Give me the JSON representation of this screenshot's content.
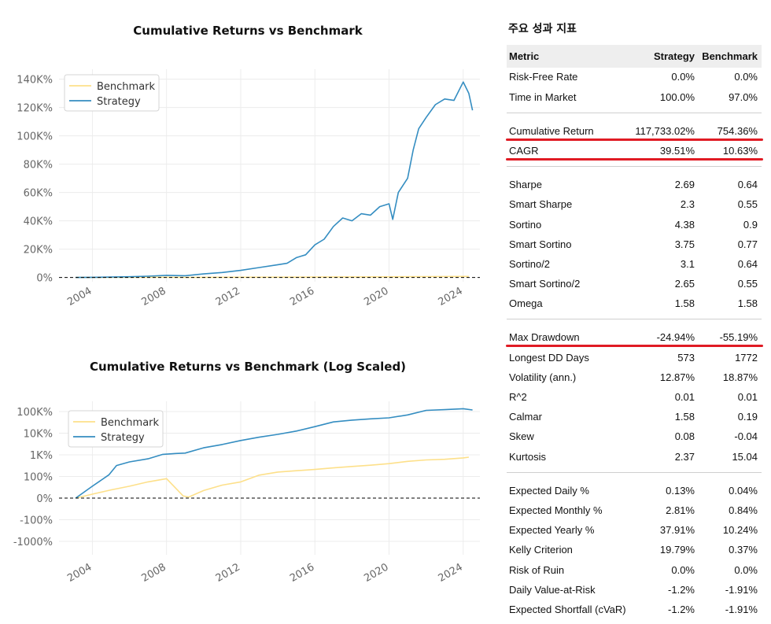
{
  "chart_data": [
    {
      "type": "line",
      "title": "Cumulative Returns vs Benchmark",
      "y_scale": "linear",
      "xlim": [
        2002.2,
        2024.9
      ],
      "ylim": [
        -3000,
        147000
      ],
      "y_ticks": [
        0,
        20000,
        40000,
        60000,
        80000,
        100000,
        120000,
        140000
      ],
      "y_tick_labels": [
        "0%",
        "20K%",
        "40K%",
        "60K%",
        "80K%",
        "100K%",
        "120K%",
        "140K%"
      ],
      "x_ticks": [
        2004,
        2008,
        2012,
        2016,
        2020,
        2024
      ],
      "x_tick_labels": [
        "2004",
        "2008",
        "2012",
        "2016",
        "2020",
        "2024"
      ],
      "legend": "top-left",
      "grid": true,
      "zero_line": "dashed",
      "series": [
        {
          "name": "Benchmark",
          "color": "#fde08a",
          "x": [
            2003.1,
            2005,
            2007.8,
            2009.1,
            2012,
            2016,
            2020,
            2022,
            2024.3
          ],
          "y": [
            0,
            80,
            180,
            30,
            150,
            280,
            450,
            600,
            750
          ]
        },
        {
          "name": "Strategy",
          "color": "#348dc1",
          "x": [
            2003.1,
            2004,
            2005,
            2006,
            2007,
            2008,
            2009,
            2010,
            2011,
            2012,
            2013,
            2014,
            2014.5,
            2015,
            2015.5,
            2016,
            2016.5,
            2017,
            2017.5,
            2018,
            2018.5,
            2019,
            2019.5,
            2020,
            2020.2,
            2020.5,
            2021,
            2021.3,
            2021.6,
            2022,
            2022.5,
            2023,
            2023.5,
            2024,
            2024.3,
            2024.5
          ],
          "y": [
            0,
            100,
            300,
            500,
            900,
            1500,
            1200,
            2500,
            3500,
            5000,
            7000,
            9000,
            10000,
            14000,
            16000,
            23000,
            27000,
            36000,
            42000,
            40000,
            45000,
            44000,
            50000,
            52000,
            41000,
            60000,
            70000,
            90000,
            105000,
            113000,
            122000,
            126000,
            125000,
            138000,
            130000,
            118000
          ]
        }
      ]
    },
    {
      "type": "line",
      "title": "Cumulative Returns vs Benchmark (Log Scaled)",
      "y_scale": "symlog",
      "xlim": [
        2002.2,
        2024.9
      ],
      "y_ticks": [
        100000,
        10000,
        1000,
        100,
        0,
        -100,
        -1000
      ],
      "y_tick_labels": [
        "100K%",
        "10K%",
        "1K%",
        "100%",
        "0%",
        "-100%",
        "-1000%"
      ],
      "x_ticks": [
        2004,
        2008,
        2012,
        2016,
        2020,
        2024
      ],
      "x_tick_labels": [
        "2004",
        "2008",
        "2012",
        "2016",
        "2020",
        "2024"
      ],
      "legend": "top-left",
      "grid": true,
      "zero_line": "dashed",
      "series": [
        {
          "name": "Benchmark",
          "color": "#fde08a",
          "x": [
            2003.1,
            2004,
            2005,
            2006,
            2007,
            2008,
            2008.9,
            2009.2,
            2010,
            2011,
            2012,
            2013,
            2014,
            2015,
            2016,
            2017,
            2018,
            2019,
            2020,
            2021,
            2022,
            2023,
            2024,
            2024.3
          ],
          "y": [
            0,
            18,
            38,
            55,
            75,
            90,
            10,
            5,
            35,
            60,
            75,
            115,
            160,
            185,
            210,
            250,
            290,
            330,
            390,
            500,
            580,
            620,
            720,
            780
          ]
        },
        {
          "name": "Strategy",
          "color": "#348dc1",
          "x": [
            2003.1,
            2004,
            2004.9,
            2005.3,
            2006,
            2007,
            2007.8,
            2008.5,
            2009,
            2010,
            2011,
            2012,
            2013,
            2014,
            2015,
            2016,
            2017,
            2018,
            2019,
            2020,
            2021,
            2022,
            2023,
            2024,
            2024.5
          ],
          "y": [
            0,
            55,
            120,
            320,
            470,
            650,
            1050,
            1150,
            1200,
            2100,
            3000,
            4600,
            6500,
            8800,
            12500,
            20000,
            33000,
            40000,
            46000,
            51000,
            70000,
            113000,
            122000,
            135000,
            118000
          ]
        }
      ]
    }
  ],
  "metrics": {
    "title": "주요 성과 지표",
    "header": {
      "metric": "Metric",
      "strategy": "Strategy",
      "benchmark": "Benchmark"
    },
    "groups": [
      [
        {
          "metric": "Risk-Free Rate",
          "strategy": "0.0%",
          "benchmark": "0.0%"
        },
        {
          "metric": "Time in Market",
          "strategy": "100.0%",
          "benchmark": "97.0%"
        }
      ],
      [
        {
          "metric": "Cumulative Return",
          "strategy": "117,733.02%",
          "benchmark": "754.36%"
        },
        {
          "metric": "CAGR",
          "strategy": "39.51%",
          "benchmark": "10.63%"
        }
      ],
      [
        {
          "metric": "Sharpe",
          "strategy": "2.69",
          "benchmark": "0.64"
        },
        {
          "metric": "Smart Sharpe",
          "strategy": "2.3",
          "benchmark": "0.55"
        },
        {
          "metric": "Sortino",
          "strategy": "4.38",
          "benchmark": "0.9"
        },
        {
          "metric": "Smart Sortino",
          "strategy": "3.75",
          "benchmark": "0.77"
        },
        {
          "metric": "Sortino/2",
          "strategy": "3.1",
          "benchmark": "0.64"
        },
        {
          "metric": "Smart Sortino/2",
          "strategy": "2.65",
          "benchmark": "0.55"
        },
        {
          "metric": "Omega",
          "strategy": "1.58",
          "benchmark": "1.58"
        }
      ],
      [
        {
          "metric": "Max Drawdown",
          "strategy": "-24.94%",
          "benchmark": "-55.19%"
        },
        {
          "metric": "Longest DD Days",
          "strategy": "573",
          "benchmark": "1772"
        },
        {
          "metric": "Volatility (ann.)",
          "strategy": "12.87%",
          "benchmark": "18.87%"
        },
        {
          "metric": "R^2",
          "strategy": "0.01",
          "benchmark": "0.01"
        },
        {
          "metric": "Calmar",
          "strategy": "1.58",
          "benchmark": "0.19"
        },
        {
          "metric": "Skew",
          "strategy": "0.08",
          "benchmark": "-0.04"
        },
        {
          "metric": "Kurtosis",
          "strategy": "2.37",
          "benchmark": "15.04"
        }
      ],
      [
        {
          "metric": "Expected Daily %",
          "strategy": "0.13%",
          "benchmark": "0.04%"
        },
        {
          "metric": "Expected Monthly %",
          "strategy": "2.81%",
          "benchmark": "0.84%"
        },
        {
          "metric": "Expected Yearly %",
          "strategy": "37.91%",
          "benchmark": "10.24%"
        },
        {
          "metric": "Kelly Criterion",
          "strategy": "19.79%",
          "benchmark": "0.37%"
        },
        {
          "metric": "Risk of Ruin",
          "strategy": "0.0%",
          "benchmark": "0.0%"
        },
        {
          "metric": "Daily Value-at-Risk",
          "strategy": "-1.2%",
          "benchmark": "-1.91%"
        },
        {
          "metric": "Expected Shortfall (cVaR)",
          "strategy": "-1.2%",
          "benchmark": "-1.91%"
        }
      ]
    ],
    "highlighted": [
      "Cumulative Return",
      "CAGR",
      "Max Drawdown"
    ],
    "highlight_color": "#e01b24"
  }
}
